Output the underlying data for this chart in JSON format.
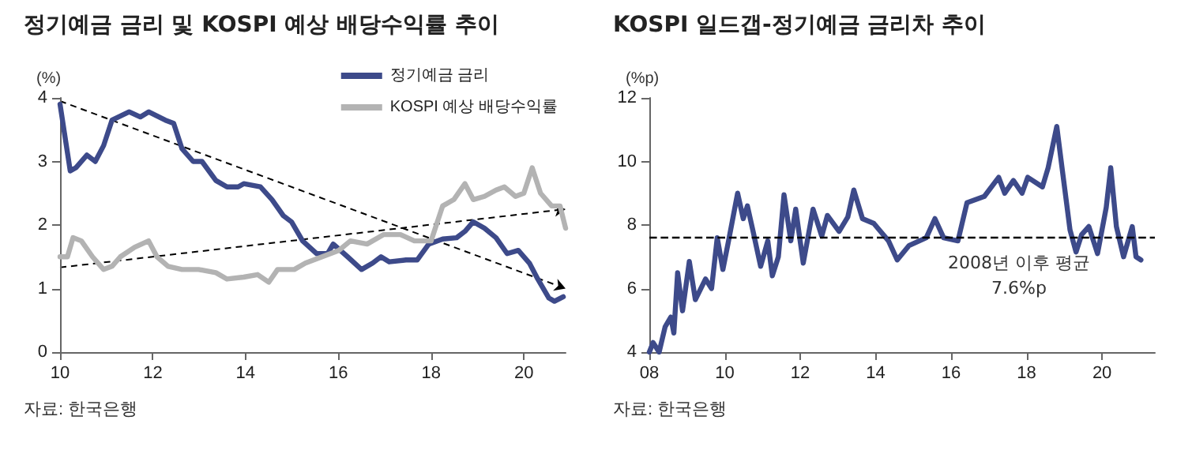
{
  "chart_data": [
    {
      "type": "line",
      "title": "정기예금 금리 및 KOSPI 예상 배당수익률 추이",
      "ylabel": "(%)",
      "xlim": [
        10,
        20.9
      ],
      "xticks": [
        {
          "value": 10,
          "label": "10"
        },
        {
          "value": 12,
          "label": "12"
        },
        {
          "value": 14,
          "label": "14"
        },
        {
          "value": 16,
          "label": "16"
        },
        {
          "value": 18,
          "label": "18"
        },
        {
          "value": 20,
          "label": "20"
        }
      ],
      "ylim": [
        0,
        4
      ],
      "yticks": [
        0,
        1,
        2,
        3,
        4
      ],
      "grid": false,
      "legend": "top right",
      "marker": "none",
      "line_style": "solid",
      "annotations": [
        "자료: 한국은행"
      ],
      "series": [
        {
          "name": "정기예금 금리",
          "color": "#3d4a8a",
          "x": [
            10.0,
            10.22,
            10.34,
            10.58,
            10.76,
            10.94,
            11.12,
            11.49,
            11.73,
            11.91,
            12.27,
            12.45,
            12.63,
            12.87,
            13.06,
            13.36,
            13.6,
            13.84,
            13.96,
            14.32,
            14.57,
            14.81,
            14.99,
            15.23,
            15.53,
            15.77,
            15.89,
            16.2,
            16.5,
            16.74,
            16.92,
            17.1,
            17.46,
            17.7,
            17.95,
            18.25,
            18.55,
            18.73,
            18.91,
            19.15,
            19.4,
            19.64,
            19.88,
            20.12,
            20.3,
            20.54,
            20.66,
            20.85
          ],
          "values": [
            3.9,
            2.85,
            2.9,
            3.1,
            3.0,
            3.25,
            3.65,
            3.78,
            3.7,
            3.78,
            3.65,
            3.6,
            3.2,
            3.0,
            3.0,
            2.7,
            2.6,
            2.6,
            2.65,
            2.6,
            2.4,
            2.15,
            2.05,
            1.75,
            1.55,
            1.55,
            1.7,
            1.5,
            1.3,
            1.4,
            1.5,
            1.42,
            1.45,
            1.45,
            1.7,
            1.78,
            1.8,
            1.9,
            2.05,
            1.95,
            1.8,
            1.55,
            1.6,
            1.4,
            1.15,
            0.85,
            0.8,
            0.87
          ]
        },
        {
          "name": "KOSPI 예상 배당수익률",
          "color": "#b3b3b3",
          "x": [
            10.0,
            10.16,
            10.28,
            10.46,
            10.7,
            10.94,
            11.12,
            11.3,
            11.61,
            11.91,
            12.09,
            12.33,
            12.63,
            12.99,
            13.36,
            13.6,
            13.96,
            14.26,
            14.5,
            14.69,
            15.05,
            15.29,
            15.65,
            16.01,
            16.26,
            16.62,
            16.98,
            17.34,
            17.64,
            18.0,
            18.25,
            18.49,
            18.73,
            18.91,
            19.15,
            19.4,
            19.58,
            19.82,
            20.0,
            20.18,
            20.36,
            20.6,
            20.78,
            20.9
          ],
          "values": [
            1.5,
            1.5,
            1.8,
            1.75,
            1.5,
            1.3,
            1.35,
            1.5,
            1.65,
            1.75,
            1.5,
            1.35,
            1.3,
            1.3,
            1.25,
            1.15,
            1.18,
            1.22,
            1.1,
            1.3,
            1.3,
            1.4,
            1.5,
            1.6,
            1.75,
            1.7,
            1.85,
            1.85,
            1.75,
            1.75,
            2.3,
            2.4,
            2.65,
            2.4,
            2.45,
            2.55,
            2.6,
            2.45,
            2.5,
            2.9,
            2.5,
            2.3,
            2.3,
            1.95
          ]
        }
      ]
    },
    {
      "type": "line",
      "title": "KOSPI 일드갭-정기예금 금리차 추이",
      "ylabel": "(%p)",
      "xlim": [
        8,
        21.4
      ],
      "xticks": [
        {
          "value": 8,
          "label": "08"
        },
        {
          "value": 10,
          "label": "10"
        },
        {
          "value": 12,
          "label": "12"
        },
        {
          "value": 14,
          "label": "14"
        },
        {
          "value": 16,
          "label": "16"
        },
        {
          "value": 18,
          "label": "18"
        },
        {
          "value": 20,
          "label": "20"
        }
      ],
      "ylim": [
        4,
        12
      ],
      "yticks": [
        4,
        6,
        8,
        10,
        12
      ],
      "grid": false,
      "legend": false,
      "marker": "none",
      "line_style": "solid",
      "annotations": [
        "자료: 한국은행"
      ],
      "ref_lines": [
        {
          "axis": "y",
          "value": 7.6,
          "label": "2008년 이후 평균\n7.6%p",
          "color": "#000000",
          "line_style": "dashed"
        }
      ],
      "series": [
        {
          "color": "#3d4a8a",
          "x": [
            8.0,
            8.1,
            8.26,
            8.42,
            8.57,
            8.65,
            8.75,
            8.88,
            9.06,
            9.22,
            9.49,
            9.65,
            9.8,
            9.95,
            10.1,
            10.34,
            10.49,
            10.6,
            10.75,
            10.95,
            11.14,
            11.26,
            11.42,
            11.57,
            11.75,
            11.88,
            12.08,
            12.34,
            12.57,
            12.72,
            13.03,
            13.26,
            13.42,
            13.65,
            13.95,
            14.34,
            14.57,
            14.88,
            15.34,
            15.57,
            15.8,
            16.18,
            16.42,
            16.88,
            17.26,
            17.42,
            17.65,
            17.88,
            18.03,
            18.42,
            18.57,
            18.8,
            18.95,
            19.15,
            19.31,
            19.46,
            19.65,
            19.88,
            20.11,
            20.23,
            20.38,
            20.57,
            20.8,
            20.9,
            21.03
          ],
          "values": [
            4.0,
            4.3,
            4.0,
            4.8,
            5.1,
            4.6,
            6.5,
            5.3,
            6.85,
            5.65,
            6.3,
            6.0,
            7.6,
            6.6,
            7.5,
            9.0,
            8.2,
            8.6,
            7.8,
            6.7,
            7.5,
            6.4,
            7.0,
            8.95,
            7.5,
            8.5,
            6.8,
            8.5,
            7.65,
            8.3,
            7.8,
            8.25,
            9.1,
            8.2,
            8.05,
            7.5,
            6.9,
            7.35,
            7.6,
            8.2,
            7.6,
            7.5,
            8.7,
            8.9,
            9.5,
            9.0,
            9.4,
            9.0,
            9.5,
            9.2,
            9.8,
            11.1,
            9.7,
            7.85,
            7.15,
            7.7,
            7.95,
            7.1,
            8.55,
            9.8,
            7.95,
            7.0,
            7.95,
            7.0,
            6.9
          ]
        }
      ]
    }
  ]
}
